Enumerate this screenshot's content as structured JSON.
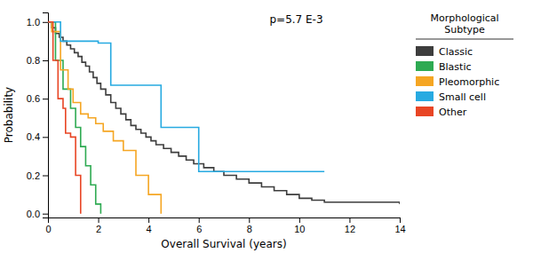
{
  "chart_data": {
    "type": "step",
    "xlabel": "Overall Survival (years)",
    "ylabel": "Probability",
    "annotations": [
      "p=5.7 E-3"
    ],
    "legend_title": "Morphological\nSubtype",
    "legend": "right",
    "grid": false,
    "xlim": [
      0,
      14
    ],
    "ylim": [
      -0.02,
      1.05
    ],
    "xticks": [
      0,
      2,
      4,
      6,
      8,
      10,
      12,
      14
    ],
    "yticks": [
      {
        "value": 0,
        "label": "0.0"
      },
      0.2,
      0.4,
      0.6,
      0.8,
      {
        "value": 1,
        "label": "1.0"
      }
    ],
    "series": [
      {
        "name": "Classic",
        "color": "#3d3d3d",
        "x": [
          0,
          0.15,
          0.3,
          0.45,
          0.6,
          0.75,
          0.9,
          1.05,
          1.2,
          1.35,
          1.5,
          1.65,
          1.8,
          1.95,
          2.1,
          2.3,
          2.5,
          2.7,
          2.9,
          3.1,
          3.3,
          3.5,
          3.7,
          3.9,
          4.1,
          4.3,
          4.6,
          4.9,
          5.2,
          5.5,
          5.8,
          6.2,
          6.6,
          7.0,
          7.5,
          8.0,
          8.5,
          9.0,
          9.5,
          10.0,
          10.5,
          11.0,
          14.0
        ],
        "values": [
          1.0,
          0.97,
          0.94,
          0.92,
          0.9,
          0.88,
          0.86,
          0.84,
          0.82,
          0.79,
          0.77,
          0.74,
          0.71,
          0.68,
          0.65,
          0.62,
          0.58,
          0.55,
          0.52,
          0.49,
          0.46,
          0.44,
          0.42,
          0.4,
          0.38,
          0.36,
          0.34,
          0.32,
          0.3,
          0.28,
          0.26,
          0.24,
          0.22,
          0.2,
          0.18,
          0.16,
          0.14,
          0.12,
          0.1,
          0.08,
          0.07,
          0.06,
          0.05
        ]
      },
      {
        "name": "Blastic",
        "color": "#2eaa52",
        "x": [
          0,
          0.3,
          0.6,
          0.9,
          1.1,
          1.3,
          1.5,
          1.7,
          1.9,
          2.1
        ],
        "values": [
          1.0,
          0.8,
          0.65,
          0.55,
          0.45,
          0.35,
          0.25,
          0.15,
          0.05,
          0.0
        ]
      },
      {
        "name": "Pleomorphic",
        "color": "#f5a623",
        "x": [
          0,
          0.15,
          0.5,
          0.8,
          1.0,
          1.3,
          1.6,
          1.9,
          2.2,
          2.6,
          3.0,
          3.5,
          4.0,
          4.5
        ],
        "values": [
          1.0,
          0.95,
          0.75,
          0.65,
          0.58,
          0.52,
          0.5,
          0.47,
          0.43,
          0.38,
          0.33,
          0.2,
          0.1,
          0.0
        ]
      },
      {
        "name": "Small cell",
        "color": "#27aae1",
        "x": [
          0,
          0.5,
          1.5,
          2.0,
          2.5,
          3.5,
          4.5,
          5.5,
          6.0,
          7.5,
          11.0
        ],
        "values": [
          1.0,
          0.9,
          0.9,
          0.89,
          0.67,
          0.67,
          0.45,
          0.45,
          0.22,
          0.22,
          0.22
        ]
      },
      {
        "name": "Other",
        "color": "#e84524",
        "x": [
          0,
          0.2,
          0.4,
          0.6,
          0.7,
          0.9,
          1.1,
          1.3
        ],
        "values": [
          1.0,
          0.8,
          0.6,
          0.55,
          0.42,
          0.4,
          0.2,
          0.0
        ]
      }
    ]
  }
}
